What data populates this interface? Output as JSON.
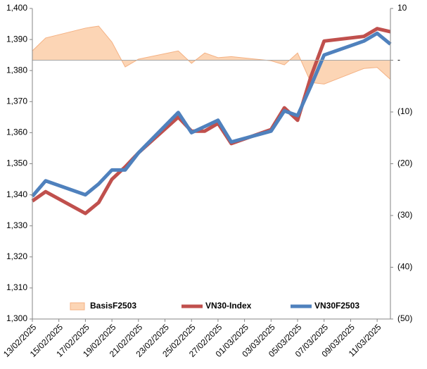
{
  "chart_data": {
    "type": "line",
    "x": [
      "13/02/2025",
      "14/02/2025",
      "17/02/2025",
      "18/02/2025",
      "19/02/2025",
      "20/02/2025",
      "21/02/2025",
      "24/02/2025",
      "25/02/2025",
      "26/02/2025",
      "27/02/2025",
      "28/02/2025",
      "03/03/2025",
      "04/03/2025",
      "05/03/2025",
      "06/03/2025",
      "07/03/2025",
      "10/03/2025",
      "11/03/2025",
      "12/03/2025"
    ],
    "xlim": [
      "13/02/2025",
      "12/03/2025"
    ],
    "xticks": [
      "13/02/2025",
      "15/02/2025",
      "17/02/2025",
      "19/02/2025",
      "21/02/2025",
      "23/02/2025",
      "25/02/2025",
      "27/02/2025",
      "01/03/2025",
      "03/03/2025",
      "05/03/2025",
      "07/03/2025",
      "09/03/2025",
      "11/03/2025"
    ],
    "ylim": [
      1300,
      1400
    ],
    "yticks": [
      {
        "value": 1300,
        "label": "1,300"
      },
      {
        "value": 1310,
        "label": "1,310"
      },
      {
        "value": 1320,
        "label": "1,320"
      },
      {
        "value": 1330,
        "label": "1,330"
      },
      {
        "value": 1340,
        "label": "1,340"
      },
      {
        "value": 1350,
        "label": "1,350"
      },
      {
        "value": 1360,
        "label": "1,360"
      },
      {
        "value": 1370,
        "label": "1,370"
      },
      {
        "value": 1380,
        "label": "1,380"
      },
      {
        "value": 1390,
        "label": "1,390"
      },
      {
        "value": 1400,
        "label": "1,400"
      }
    ],
    "y2lim": [
      -50,
      10
    ],
    "y2ticks": [
      10,
      {
        "value": 0,
        "label": "-"
      },
      {
        "value": -10,
        "label": "(10)"
      },
      {
        "value": -20,
        "label": "(20)"
      },
      {
        "value": -30,
        "label": "(30)"
      },
      {
        "value": -40,
        "label": "(40)"
      },
      {
        "value": -50,
        "label": "(50)"
      }
    ],
    "legend": "bottom",
    "series": [
      {
        "name": "BasisF2503",
        "type": "area",
        "axis": "y2",
        "color": "#fcd5b5",
        "values": [
          1.8,
          4.3,
          6.2,
          6.6,
          3.5,
          -1.3,
          0.2,
          1.8,
          -0.6,
          1.4,
          0.5,
          0.7,
          -0.1,
          -0.9,
          1.4,
          -4.3,
          -4.6,
          -1.6,
          -1.4,
          -3.7
        ]
      },
      {
        "name": "VN30-Index",
        "type": "line",
        "color": "#c0504d",
        "values": [
          1338,
          1341,
          1334,
          1337.5,
          1345,
          1349,
          1353.5,
          1365,
          1360.5,
          1360.5,
          1363,
          1356.5,
          1361,
          1368,
          1364,
          1378,
          1389.5,
          1391,
          1393.5,
          1392.5
        ]
      },
      {
        "name": "VN30F2503",
        "type": "line",
        "color": "#4f81bd",
        "values": [
          1339.5,
          1344.5,
          1340,
          1343.5,
          1348,
          1348,
          1353.5,
          1366.5,
          1360,
          1362,
          1364,
          1357,
          1360.5,
          1367,
          1365.5,
          1375,
          1385,
          1389.5,
          1392,
          1388.5
        ]
      }
    ]
  }
}
